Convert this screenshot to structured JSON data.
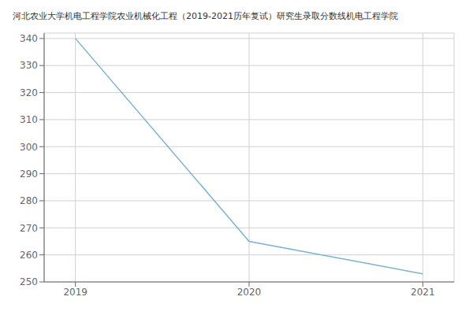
{
  "chart_data": {
    "type": "line",
    "title": "河北农业大学机电工程学院农业机械化工程（2019-2021历年复试）研究生录取分数线机电工程学院",
    "x": [
      2019,
      2020,
      2021
    ],
    "values": [
      340,
      265,
      253
    ],
    "color": "#7ab3d4",
    "xlim": [
      2018.82,
      2021.18
    ],
    "xticks": [
      2019,
      2020,
      2021
    ],
    "ylim": [
      250,
      342
    ],
    "yticks": [
      250,
      260,
      270,
      280,
      290,
      300,
      310,
      320,
      330,
      340
    ],
    "grid": true
  }
}
